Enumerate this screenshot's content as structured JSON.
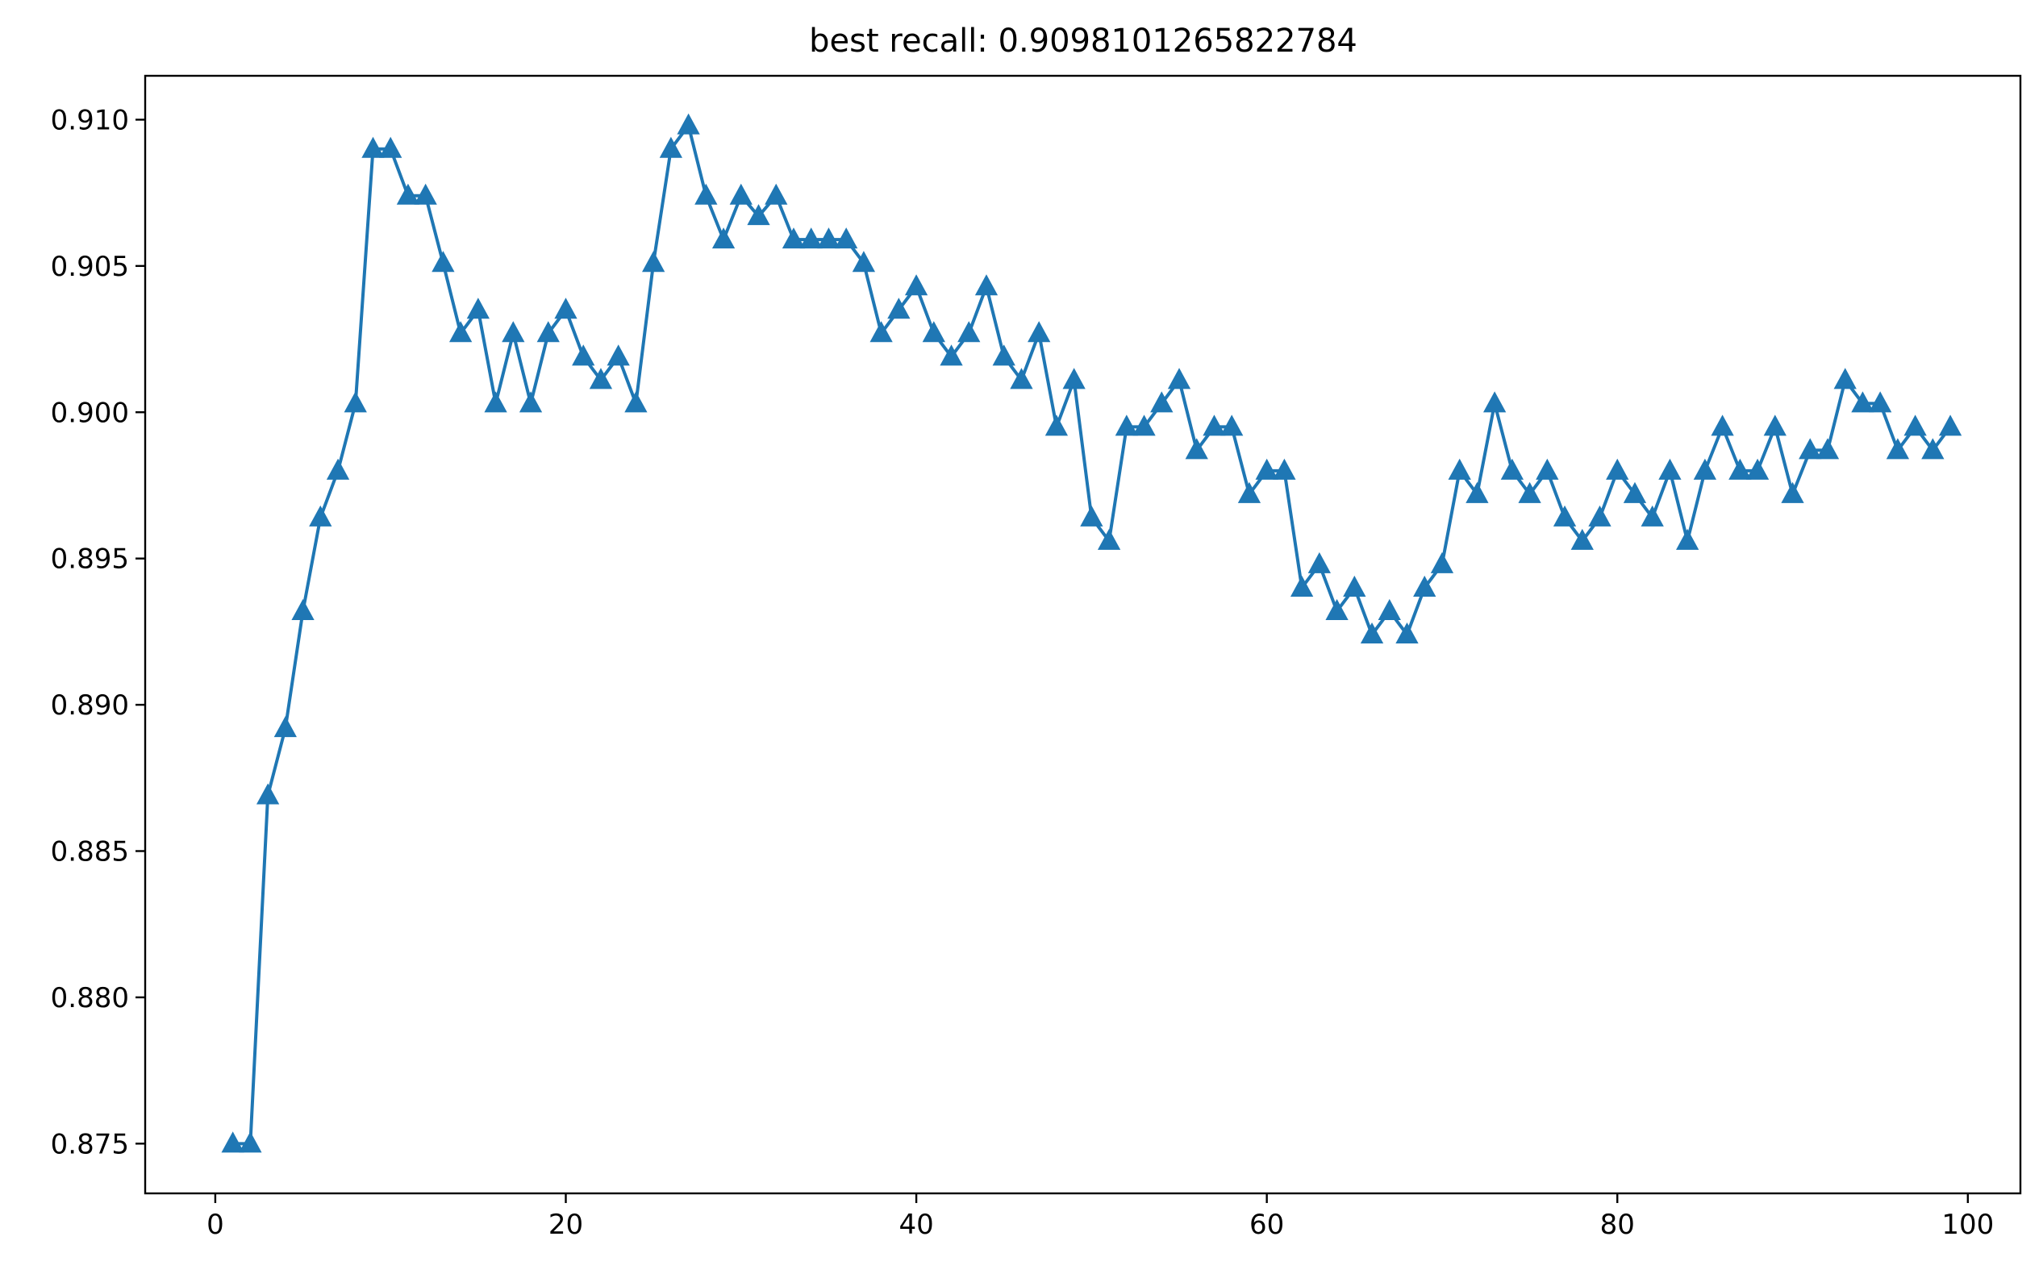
{
  "chart_data": {
    "type": "line",
    "title": "best recall: 0.9098101265822784",
    "xlabel": "",
    "ylabel": "",
    "xlim": [
      -4,
      103
    ],
    "ylim": [
      0.8733,
      0.9115
    ],
    "x_ticks": [
      0,
      20,
      40,
      60,
      80,
      100
    ],
    "x_tick_labels": [
      "0",
      "20",
      "40",
      "60",
      "80",
      "100"
    ],
    "y_ticks": [
      0.875,
      0.88,
      0.885,
      0.89,
      0.895,
      0.9,
      0.905,
      0.91
    ],
    "y_tick_labels": [
      "0.875",
      "0.880",
      "0.885",
      "0.890",
      "0.895",
      "0.900",
      "0.905",
      "0.910"
    ],
    "grid": false,
    "legend": "none",
    "marker": "triangle-up",
    "color": "#1f77b4",
    "series": [
      {
        "x": [
          1,
          2,
          3,
          4,
          5,
          6,
          7,
          8,
          9,
          10,
          11,
          12,
          13,
          14,
          15,
          16,
          17,
          18,
          19,
          20,
          21,
          22,
          23,
          24,
          25,
          26,
          27,
          28,
          29,
          30,
          31,
          32,
          33,
          34,
          35,
          36,
          37,
          38,
          39,
          40,
          41,
          42,
          43,
          44,
          45,
          46,
          47,
          48,
          49,
          50,
          51,
          52,
          53,
          54,
          55,
          56,
          57,
          58,
          59,
          60,
          61,
          62,
          63,
          64,
          65,
          66,
          67,
          68,
          69,
          70,
          71,
          72,
          73,
          74,
          75,
          76,
          77,
          78,
          79,
          80,
          81,
          82,
          83,
          84,
          85,
          86,
          87,
          88,
          89,
          90,
          91,
          92,
          93,
          94,
          95,
          96,
          97,
          98,
          99
        ],
        "y": [
          0.875,
          0.875,
          0.8869,
          0.8892,
          0.8932,
          0.8964,
          0.898,
          0.9003,
          0.909,
          0.909,
          0.9074,
          0.9074,
          0.9051,
          0.9027,
          0.9035,
          0.9003,
          0.9027,
          0.9003,
          0.9027,
          0.9035,
          0.9019,
          0.9011,
          0.9019,
          0.9003,
          0.9051,
          0.909,
          0.9098,
          0.9074,
          0.9059,
          0.9074,
          0.9067,
          0.9074,
          0.9059,
          0.9059,
          0.9059,
          0.9059,
          0.9051,
          0.9027,
          0.9035,
          0.9043,
          0.9027,
          0.9019,
          0.9027,
          0.9043,
          0.9019,
          0.9011,
          0.9027,
          0.8995,
          0.9011,
          0.8964,
          0.8956,
          0.8995,
          0.8995,
          0.9003,
          0.9011,
          0.8987,
          0.8995,
          0.8995,
          0.8972,
          0.898,
          0.898,
          0.894,
          0.8948,
          0.8932,
          0.894,
          0.8924,
          0.8932,
          0.8924,
          0.894,
          0.8948,
          0.898,
          0.8972,
          0.9003,
          0.898,
          0.8972,
          0.898,
          0.8964,
          0.8956,
          0.8964,
          0.898,
          0.8972,
          0.8964,
          0.898,
          0.8956,
          0.898,
          0.8995,
          0.898,
          0.898,
          0.8995,
          0.8972,
          0.8987,
          0.8987,
          0.9011,
          0.9003,
          0.9003,
          0.8987,
          0.8995,
          0.8987,
          0.8995
        ]
      }
    ]
  }
}
